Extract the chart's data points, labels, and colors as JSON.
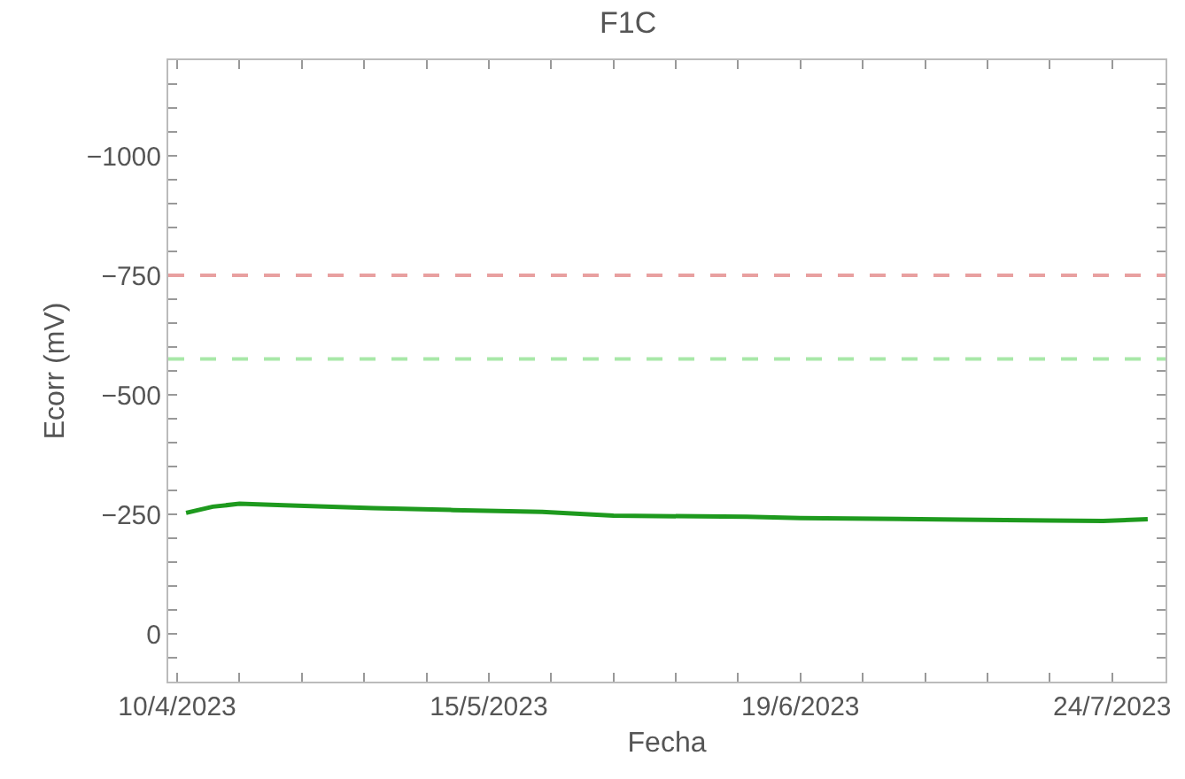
{
  "chart_data": {
    "type": "line",
    "title": "F1C",
    "xlabel": "Fecha",
    "ylabel": "Ecorr (mV)",
    "x": [
      "2023-04-11",
      "2023-04-14",
      "2023-04-17",
      "2023-04-22",
      "2023-05-02",
      "2023-05-11",
      "2023-05-21",
      "2023-05-29",
      "2023-06-13",
      "2023-06-19",
      "2023-07-07",
      "2023-07-17",
      "2023-07-23",
      "2023-07-28"
    ],
    "series": [
      {
        "color": "#1e9a1e",
        "values": [
          -253,
          -266,
          -272,
          -269,
          -263,
          -259,
          -255,
          -247,
          -245,
          -242,
          -239,
          -237,
          -236,
          -240
        ]
      }
    ],
    "xlim": [
      "2023-04-09",
      "2023-07-30"
    ],
    "xticks": [
      {
        "value": "2023-04-10",
        "label": "10/4/2023"
      },
      {
        "value": "2023-04-17",
        "label": null
      },
      {
        "value": "2023-04-24",
        "label": null
      },
      {
        "value": "2023-05-01",
        "label": null
      },
      {
        "value": "2023-05-08",
        "label": null
      },
      {
        "value": "2023-05-15",
        "label": "15/5/2023"
      },
      {
        "value": "2023-05-22",
        "label": null
      },
      {
        "value": "2023-05-29",
        "label": null
      },
      {
        "value": "2023-06-05",
        "label": null
      },
      {
        "value": "2023-06-12",
        "label": null
      },
      {
        "value": "2023-06-19",
        "label": "19/6/2023"
      },
      {
        "value": "2023-06-26",
        "label": null
      },
      {
        "value": "2023-07-03",
        "label": null
      },
      {
        "value": "2023-07-10",
        "label": null
      },
      {
        "value": "2023-07-17",
        "label": null
      },
      {
        "value": "2023-07-24",
        "label": "24/7/2023"
      }
    ],
    "ylim": [
      100,
      -1200
    ],
    "yticks": [
      {
        "value": -1150,
        "label": null
      },
      {
        "value": -1100,
        "label": null
      },
      {
        "value": -1050,
        "label": null
      },
      {
        "value": -1000,
        "label": "−1000"
      },
      {
        "value": -950,
        "label": null
      },
      {
        "value": -900,
        "label": null
      },
      {
        "value": -850,
        "label": null
      },
      {
        "value": -800,
        "label": null
      },
      {
        "value": -750,
        "label": "−750"
      },
      {
        "value": -700,
        "label": null
      },
      {
        "value": -650,
        "label": null
      },
      {
        "value": -600,
        "label": null
      },
      {
        "value": -550,
        "label": null
      },
      {
        "value": -500,
        "label": "−500"
      },
      {
        "value": -450,
        "label": null
      },
      {
        "value": -400,
        "label": null
      },
      {
        "value": -350,
        "label": null
      },
      {
        "value": -300,
        "label": null
      },
      {
        "value": -250,
        "label": "−250"
      },
      {
        "value": -200,
        "label": null
      },
      {
        "value": -150,
        "label": null
      },
      {
        "value": -100,
        "label": null
      },
      {
        "value": -50,
        "label": null
      },
      {
        "value": 0,
        "label": "0"
      },
      {
        "value": 50,
        "label": null
      }
    ],
    "ref_lines": [
      {
        "axis": "y",
        "value": -750,
        "color": "#e8a0a0",
        "line_style": "dashed"
      },
      {
        "axis": "y",
        "value": -575,
        "color": "#a8e8a8",
        "line_style": "dashed"
      }
    ],
    "grid": false,
    "marker": "none",
    "line_style": "solid"
  }
}
